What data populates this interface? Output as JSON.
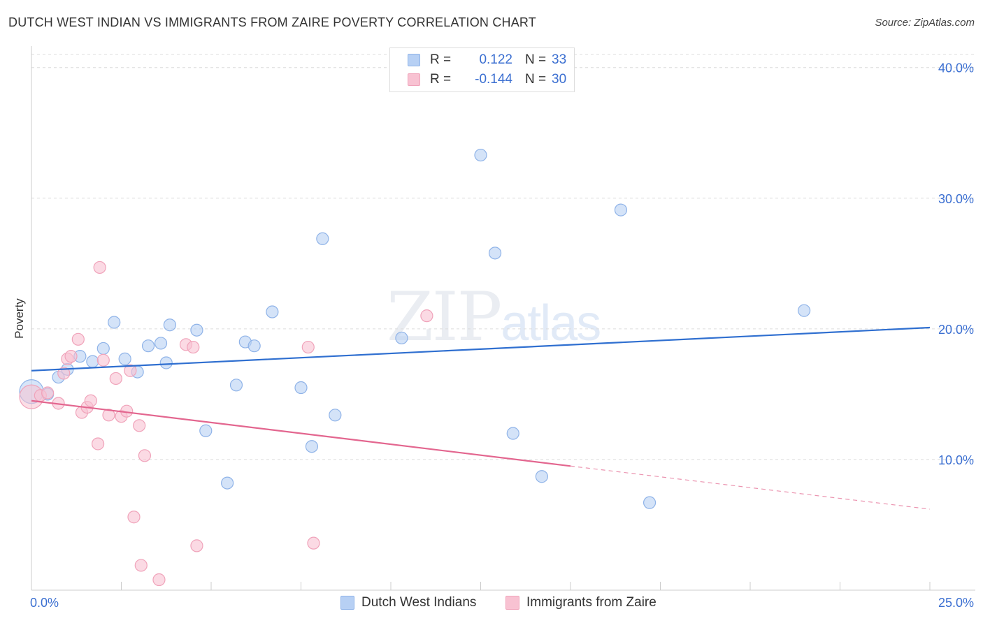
{
  "title": "DUTCH WEST INDIAN VS IMMIGRANTS FROM ZAIRE POVERTY CORRELATION CHART",
  "source": "Source: ZipAtlas.com",
  "watermark": {
    "part1": "ZIP",
    "part2": "atlas"
  },
  "legend": {
    "series1": {
      "r_label": "R =",
      "r_value": "0.122",
      "n_label": "N =",
      "n_value": "33"
    },
    "series2": {
      "r_label": "R =",
      "r_value": "-0.144",
      "n_label": "N =",
      "n_value": "30"
    }
  },
  "bottom_legend": {
    "series1": "Dutch West Indians",
    "series2": "Immigrants from Zaire"
  },
  "colors": {
    "blue_fill": "#b7d0f4",
    "blue_stroke": "#8fb3e8",
    "blue_line": "#2f6fd0",
    "pink_fill": "#f8c2d2",
    "pink_stroke": "#f0a3ba",
    "pink_line": "#e3668f",
    "axis_text": "#3b6fd1",
    "grid": "#dcdcdc"
  },
  "chart_data": {
    "type": "scatter",
    "title": "DUTCH WEST INDIAN VS IMMIGRANTS FROM ZAIRE POVERTY CORRELATION CHART",
    "xlabel": "",
    "ylabel": "Poverty",
    "xlim": [
      0,
      25
    ],
    "ylim": [
      0,
      40
    ],
    "x_tick_labels": [
      "0.0%",
      "25.0%"
    ],
    "y_ticks": [
      10,
      20,
      30,
      40
    ],
    "y_tick_labels": [
      "10.0%",
      "20.0%",
      "30.0%",
      "40.0%"
    ],
    "series": [
      {
        "name": "Dutch West Indians",
        "color": "#b7d0f4",
        "points": [
          [
            0.0,
            15.2
          ],
          [
            0.45,
            15.0
          ],
          [
            0.75,
            16.3
          ],
          [
            1.0,
            16.9
          ],
          [
            1.35,
            17.9
          ],
          [
            1.7,
            17.5
          ],
          [
            2.0,
            18.5
          ],
          [
            2.3,
            20.5
          ],
          [
            2.6,
            17.7
          ],
          [
            2.95,
            16.7
          ],
          [
            3.25,
            18.7
          ],
          [
            3.6,
            18.9
          ],
          [
            3.75,
            17.4
          ],
          [
            3.85,
            20.3
          ],
          [
            4.6,
            19.9
          ],
          [
            4.85,
            12.2
          ],
          [
            5.45,
            8.2
          ],
          [
            5.7,
            15.7
          ],
          [
            5.95,
            19.0
          ],
          [
            6.2,
            18.7
          ],
          [
            6.7,
            21.3
          ],
          [
            7.5,
            15.5
          ],
          [
            7.8,
            11.0
          ],
          [
            8.1,
            26.9
          ],
          [
            8.45,
            13.4
          ],
          [
            10.3,
            19.3
          ],
          [
            12.5,
            33.3
          ],
          [
            12.9,
            25.8
          ],
          [
            13.4,
            12.0
          ],
          [
            14.2,
            8.7
          ],
          [
            16.4,
            29.1
          ],
          [
            17.2,
            6.7
          ],
          [
            21.5,
            21.4
          ]
        ],
        "trend": {
          "x0": 0,
          "y0": 16.8,
          "x1": 25,
          "y1": 20.1
        }
      },
      {
        "name": "Immigrants from Zaire",
        "color": "#f8c2d2",
        "points": [
          [
            0.0,
            14.8
          ],
          [
            0.25,
            14.9
          ],
          [
            0.45,
            15.1
          ],
          [
            0.75,
            14.3
          ],
          [
            0.9,
            16.6
          ],
          [
            1.0,
            17.7
          ],
          [
            1.1,
            17.9
          ],
          [
            1.3,
            19.2
          ],
          [
            1.4,
            13.6
          ],
          [
            1.55,
            14.0
          ],
          [
            1.65,
            14.5
          ],
          [
            1.85,
            11.2
          ],
          [
            1.9,
            24.7
          ],
          [
            2.0,
            17.6
          ],
          [
            2.15,
            13.4
          ],
          [
            2.35,
            16.2
          ],
          [
            2.5,
            13.3
          ],
          [
            2.65,
            13.7
          ],
          [
            2.85,
            5.6
          ],
          [
            2.75,
            16.8
          ],
          [
            3.05,
            1.9
          ],
          [
            3.0,
            12.6
          ],
          [
            3.15,
            10.3
          ],
          [
            3.55,
            0.8
          ],
          [
            4.3,
            18.8
          ],
          [
            4.5,
            18.6
          ],
          [
            4.6,
            3.4
          ],
          [
            7.85,
            3.6
          ],
          [
            7.7,
            18.6
          ],
          [
            11.0,
            21.0
          ]
        ],
        "trend": {
          "x0": 0,
          "y0": 14.5,
          "x1": 15,
          "y1": 9.5,
          "dashed_to_x": 25,
          "dashed_to_y": 6.2
        }
      }
    ]
  }
}
